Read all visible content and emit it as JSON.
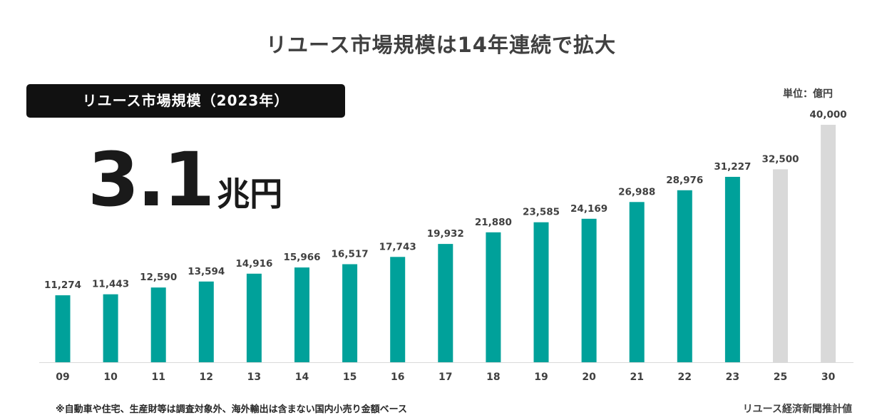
{
  "title": "リユース市場規模は14年連続で拡大",
  "headline": {
    "label": "リユース市場規模（2023年）",
    "value": "3.1",
    "unit": "兆円"
  },
  "unit_note": "単位：億円",
  "footnote": "※自動車や住宅、生産財等は調査対象外、海外輸出は含まない国内小売り金額ベース",
  "source": "リユース経済新聞推計値",
  "colors": {
    "actual": "#00A19A",
    "forecast": "#D9D9D9",
    "axis": "#D9D9D9",
    "text": "#404040"
  },
  "chart_data": {
    "type": "bar",
    "title": "リユース市場規模は14年連続で拡大",
    "xlabel": "",
    "ylabel": "単位：億円",
    "ylim": [
      0,
      40000
    ],
    "grid": false,
    "categories": [
      "09",
      "10",
      "11",
      "12",
      "13",
      "14",
      "15",
      "16",
      "17",
      "18",
      "19",
      "20",
      "21",
      "22",
      "23",
      "25",
      "30"
    ],
    "values": [
      11274,
      11443,
      12590,
      13594,
      14916,
      15966,
      16517,
      17743,
      19932,
      21880,
      23585,
      24169,
      26988,
      28976,
      31227,
      32500,
      40000
    ],
    "value_labels": [
      "11,274",
      "11,443",
      "12,590",
      "13,594",
      "14,916",
      "15,966",
      "16,517",
      "17,743",
      "19,932",
      "21,880",
      "23,585",
      "24,169",
      "26,988",
      "28,976",
      "31,227",
      "32,500",
      "40,000"
    ],
    "series_type": [
      "actual",
      "actual",
      "actual",
      "actual",
      "actual",
      "actual",
      "actual",
      "actual",
      "actual",
      "actual",
      "actual",
      "actual",
      "actual",
      "actual",
      "actual",
      "forecast",
      "forecast"
    ]
  }
}
